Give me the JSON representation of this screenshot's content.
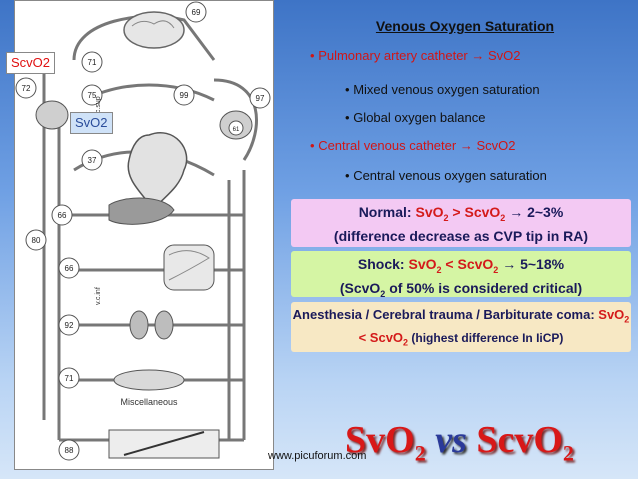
{
  "diagram": {
    "labels": {
      "scvo2_tag": "ScvO2",
      "svo2_tag": "SvO2",
      "miscellaneous": "Miscellaneous",
      "vc_sup": "v.c.sup",
      "vc_inf": "v.c.inf"
    },
    "values": [
      "72",
      "71",
      "75",
      "69",
      "99",
      "97",
      "61",
      "37",
      "66",
      "80",
      "66",
      "92",
      "71",
      "88"
    ]
  },
  "heading": "Venous Oxygen Saturation",
  "bullets": [
    {
      "marker": "•",
      "text": "Pulmonary artery catheter",
      "arrow": "→",
      "tail": "SvO2"
    },
    {
      "marker": "•",
      "text": "Mixed venous oxygen saturation"
    },
    {
      "marker": "•",
      "text": "Global oxygen balance"
    },
    {
      "marker": "•",
      "text": "Central venous catheter",
      "arrow": "→",
      "tail": "ScvO2"
    },
    {
      "marker": "•",
      "text": "Central venous oxygen saturation"
    }
  ],
  "boxes": {
    "normal": {
      "prefix": "Normal: ",
      "a": "SvO",
      "a_sub": "2",
      "op": " > ",
      "b": "ScvO",
      "b_sub": "2",
      "arrow": " → ",
      "tail": "2~3%",
      "line2": "(difference decrease as CVP tip in RA)"
    },
    "shock": {
      "prefix": "Shock: ",
      "a": "SvO",
      "a_sub": "2",
      "op": " < ",
      "b": "ScvO",
      "b_sub": "2",
      "arrow": " → ",
      "tail": "5~18%",
      "line2_a": "(ScvO",
      "line2_sub": "2",
      "line2_b": " of 50% is considered critical)"
    },
    "anesthesia": {
      "prefix": "Anesthesia / Cerebral trauma / Barbiturate coma: ",
      "a": "SvO",
      "a_sub": "2",
      "op": "< ",
      "b": "ScvO",
      "b_sub": "2",
      "tail": " (highest difference In IiCP)"
    }
  },
  "big_title": {
    "a": "SvO",
    "a_sub": "2",
    "vs": "vs",
    "b": "ScvO",
    "b_sub": "2"
  },
  "url": "www.picuforum.com",
  "colors": {
    "bg_top": "#3e74c6",
    "bg_bottom": "#d6e6f8",
    "normal_box": "#f3c9f3",
    "shock_box": "#d5f5a4",
    "anesthesia_box": "#f7e8c4",
    "red": "#d81818"
  }
}
